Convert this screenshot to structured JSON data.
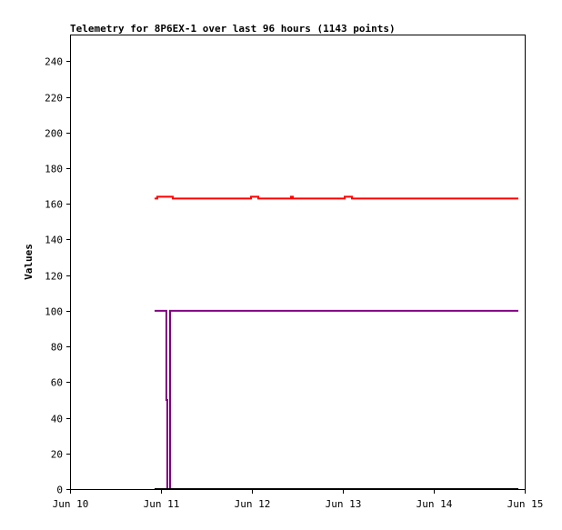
{
  "chart_data": {
    "type": "line",
    "title": "Telemetry for 8P6EX-1 over last 96 hours (1143 points)",
    "xlabel": "",
    "ylabel": "Values",
    "xlim": [
      "2024-06-10T00:00",
      "2024-06-15T00:00"
    ],
    "ylim": [
      0,
      255
    ],
    "x_ticks": [
      "Jun 10",
      "Jun 11",
      "Jun 12",
      "Jun 13",
      "Jun 14",
      "Jun 15"
    ],
    "y_ticks": [
      0,
      20,
      40,
      60,
      80,
      100,
      120,
      140,
      160,
      180,
      200,
      220,
      240
    ],
    "grid": false,
    "legend": "none",
    "series": [
      {
        "color": "#ff0000",
        "step": true,
        "points": [
          [
            "2024-06-10T22:19",
            163
          ],
          [
            "2024-06-10T23:02",
            164
          ],
          [
            "2024-06-11T03:07",
            163
          ],
          [
            "2024-06-11T23:46",
            164
          ],
          [
            "2024-06-12T01:41",
            163
          ],
          [
            "2024-06-12T10:19",
            164
          ],
          [
            "2024-06-12T10:48",
            163
          ],
          [
            "2024-06-13T00:29",
            164
          ],
          [
            "2024-06-13T02:24",
            163
          ],
          [
            "2024-06-14T22:19",
            163
          ]
        ]
      },
      {
        "color": "#800080",
        "step": true,
        "points": [
          [
            "2024-06-10T22:19",
            100
          ],
          [
            "2024-06-11T01:26",
            50
          ],
          [
            "2024-06-11T01:41",
            0
          ],
          [
            "2024-06-11T02:24",
            100
          ],
          [
            "2024-06-14T22:19",
            100
          ]
        ]
      },
      {
        "color": "#000000",
        "step": true,
        "points": [
          [
            "2024-06-10T22:19",
            0
          ],
          [
            "2024-06-14T22:19",
            0
          ]
        ]
      }
    ]
  }
}
